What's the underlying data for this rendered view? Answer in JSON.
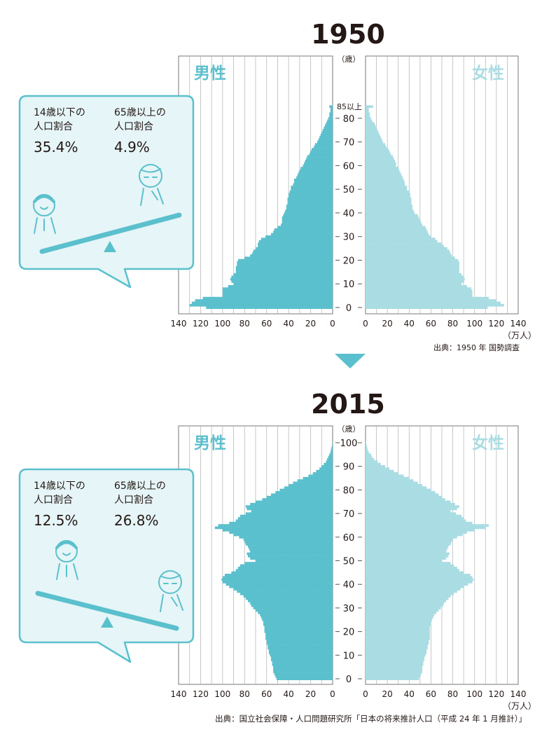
{
  "colors": {
    "male": "#5bc0cd",
    "female": "#a9dde3",
    "grid": "#b9b9b9",
    "bubble_fill": "#e6f5f7",
    "bubble_stroke": "#5bc0cd",
    "text": "#231815",
    "arrow": "#5bc0cd"
  },
  "icons": [
    "down-arrow-icon",
    "seesaw-icon",
    "child-figure-icon",
    "elderly-figure-icon",
    "fulcrum-icon"
  ],
  "labels": {
    "male": "男性",
    "female": "女性",
    "age_unit": "（歳）",
    "pop_unit": "（万人）",
    "child_ratio_line1": "14歳以下の",
    "elder_ratio_line1": "65歳以上の",
    "ratio_line2": "人口割合"
  },
  "charts": [
    {
      "year_title": "1950",
      "source": "出典：1950 年 国勢調査",
      "child_ratio": "35.4%",
      "elder_ratio": "4.9%",
      "y_ticks": [
        "0",
        "10",
        "20",
        "30",
        "40",
        "50",
        "60",
        "70",
        "80"
      ],
      "top_label": "85以上",
      "x_ticks_left": [
        "140",
        "120",
        "100",
        "80",
        "60",
        "40",
        "20",
        "0"
      ],
      "x_ticks_right": [
        "0",
        "20",
        "40",
        "60",
        "80",
        "100",
        "120",
        "140"
      ]
    },
    {
      "year_title": "2015",
      "source": "出典：国立社会保障・人口問題研究所「日本の将来推計人口（平成 24 年 1 月推計）」",
      "child_ratio": "12.5%",
      "elder_ratio": "26.8%",
      "y_ticks": [
        "0",
        "10",
        "20",
        "30",
        "40",
        "50",
        "60",
        "70",
        "80",
        "90",
        "100"
      ],
      "x_ticks_left": [
        "140",
        "120",
        "100",
        "80",
        "60",
        "40",
        "20",
        "0"
      ],
      "x_ticks_right": [
        "0",
        "20",
        "40",
        "60",
        "80",
        "100",
        "120",
        "140"
      ]
    }
  ],
  "chart_data": [
    {
      "type": "bar",
      "orientation": "horizontal-pyramid",
      "title": "1950",
      "xlabel": "（万人）",
      "ylabel": "（歳）",
      "xlim": [
        0,
        140
      ],
      "ylim": [
        0,
        85
      ],
      "age_labels": [
        "0",
        "10",
        "20",
        "30",
        "40",
        "50",
        "60",
        "70",
        "80",
        "85以上"
      ],
      "ages": [
        0,
        1,
        2,
        3,
        4,
        5,
        6,
        7,
        8,
        9,
        10,
        11,
        12,
        13,
        14,
        15,
        16,
        17,
        18,
        19,
        20,
        21,
        22,
        23,
        24,
        25,
        26,
        27,
        28,
        29,
        30,
        31,
        32,
        33,
        34,
        35,
        36,
        37,
        38,
        39,
        40,
        41,
        42,
        43,
        44,
        45,
        46,
        47,
        48,
        49,
        50,
        51,
        52,
        53,
        54,
        55,
        56,
        57,
        58,
        59,
        60,
        61,
        62,
        63,
        64,
        65,
        66,
        67,
        68,
        69,
        70,
        71,
        72,
        73,
        74,
        75,
        76,
        77,
        78,
        79,
        80,
        81,
        82,
        83,
        84,
        85
      ],
      "series": [
        {
          "name": "男性",
          "values": [
            115,
            130,
            128,
            125,
            118,
            100,
            100,
            100,
            100,
            95,
            90,
            92,
            93,
            92,
            90,
            88,
            88,
            88,
            87,
            87,
            86,
            80,
            75,
            73,
            72,
            70,
            68,
            68,
            67,
            65,
            61,
            56,
            54,
            53,
            50,
            47,
            46,
            46,
            46,
            45,
            44,
            43,
            42,
            42,
            41,
            41,
            41,
            40,
            40,
            39,
            38,
            38,
            36,
            35,
            35,
            33,
            32,
            31,
            30,
            29,
            27,
            26,
            25,
            24,
            23,
            21,
            20,
            19,
            17,
            16,
            14,
            13,
            12,
            11,
            10,
            9,
            8,
            7,
            6,
            5,
            4,
            3,
            3,
            2,
            2,
            3
          ]
        },
        {
          "name": "女性",
          "values": [
            112,
            127,
            124,
            120,
            113,
            98,
            98,
            98,
            97,
            93,
            88,
            90,
            91,
            90,
            88,
            86,
            86,
            86,
            86,
            86,
            85,
            82,
            79,
            78,
            77,
            75,
            72,
            70,
            66,
            64,
            60,
            58,
            57,
            56,
            55,
            52,
            51,
            50,
            49,
            48,
            45,
            44,
            43,
            43,
            42,
            42,
            42,
            41,
            41,
            40,
            38,
            38,
            36,
            36,
            35,
            34,
            33,
            32,
            31,
            30,
            28,
            28,
            27,
            26,
            25,
            23,
            22,
            21,
            19,
            18,
            16,
            15,
            14,
            13,
            12,
            11,
            10,
            9,
            8,
            6,
            5,
            4,
            4,
            3,
            3,
            7
          ]
        }
      ]
    },
    {
      "type": "bar",
      "orientation": "horizontal-pyramid",
      "title": "2015",
      "xlabel": "（万人）",
      "ylabel": "（歳）",
      "xlim": [
        0,
        140
      ],
      "ylim": [
        0,
        100
      ],
      "ages": [
        0,
        1,
        2,
        3,
        4,
        5,
        6,
        7,
        8,
        9,
        10,
        11,
        12,
        13,
        14,
        15,
        16,
        17,
        18,
        19,
        20,
        21,
        22,
        23,
        24,
        25,
        26,
        27,
        28,
        29,
        30,
        31,
        32,
        33,
        34,
        35,
        36,
        37,
        38,
        39,
        40,
        41,
        42,
        43,
        44,
        45,
        46,
        47,
        48,
        49,
        50,
        51,
        52,
        53,
        54,
        55,
        56,
        57,
        58,
        59,
        60,
        61,
        62,
        63,
        64,
        65,
        66,
        67,
        68,
        69,
        70,
        71,
        72,
        73,
        74,
        75,
        76,
        77,
        78,
        79,
        80,
        81,
        82,
        83,
        84,
        85,
        86,
        87,
        88,
        89,
        90,
        91,
        92,
        93,
        94,
        95,
        96,
        97,
        98,
        99,
        100
      ],
      "series": [
        {
          "name": "男性",
          "values": [
            51,
            52,
            53,
            54,
            54,
            54,
            55,
            55,
            56,
            56,
            57,
            58,
            58,
            59,
            59,
            60,
            60,
            61,
            61,
            61,
            62,
            62,
            62,
            63,
            63,
            64,
            65,
            66,
            68,
            70,
            72,
            74,
            75,
            77,
            79,
            81,
            84,
            87,
            90,
            94,
            97,
            100,
            101,
            100,
            98,
            92,
            88,
            86,
            84,
            80,
            70,
            75,
            77,
            78,
            75,
            76,
            77,
            79,
            80,
            81,
            85,
            90,
            94,
            100,
            107,
            104,
            94,
            88,
            86,
            84,
            79,
            74,
            78,
            79,
            75,
            70,
            64,
            60,
            56,
            52,
            48,
            44,
            40,
            36,
            32,
            27,
            22,
            18,
            15,
            12,
            10,
            8,
            6,
            5,
            4,
            3,
            2,
            1.5,
            1,
            0.5,
            0.2
          ]
        },
        {
          "name": "女性",
          "values": [
            49,
            50,
            51,
            52,
            52,
            52,
            53,
            53,
            54,
            54,
            55,
            56,
            56,
            57,
            57,
            58,
            58,
            59,
            59,
            59,
            59,
            59,
            59,
            60,
            60,
            61,
            62,
            63,
            65,
            67,
            69,
            71,
            72,
            74,
            76,
            78,
            81,
            84,
            87,
            90,
            94,
            98,
            99,
            98,
            96,
            90,
            86,
            84,
            81,
            78,
            70,
            74,
            76,
            77,
            74,
            75,
            76,
            78,
            79,
            80,
            84,
            89,
            93,
            100,
            110,
            113,
            98,
            92,
            90,
            88,
            83,
            78,
            84,
            86,
            82,
            78,
            73,
            70,
            67,
            64,
            60,
            56,
            52,
            48,
            44,
            40,
            35,
            30,
            26,
            22,
            18,
            14,
            11,
            8,
            6,
            5,
            3,
            2,
            1.5,
            1,
            0.5
          ]
        }
      ]
    }
  ]
}
